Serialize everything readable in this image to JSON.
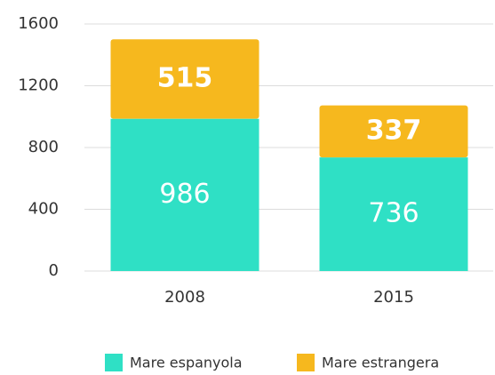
{
  "chart_data": {
    "type": "stacked_bar",
    "categories": [
      "2008",
      "2015"
    ],
    "series": [
      {
        "name": "Mare espanyola",
        "color": "#2fe0c5",
        "values": [
          986,
          736
        ]
      },
      {
        "name": "Mare estrangera",
        "color": "#f6b81e",
        "values": [
          515,
          337
        ]
      }
    ],
    "ylim": [
      0,
      1600
    ],
    "yticks": [
      0,
      400,
      800,
      1200,
      1600
    ],
    "grid": true
  }
}
